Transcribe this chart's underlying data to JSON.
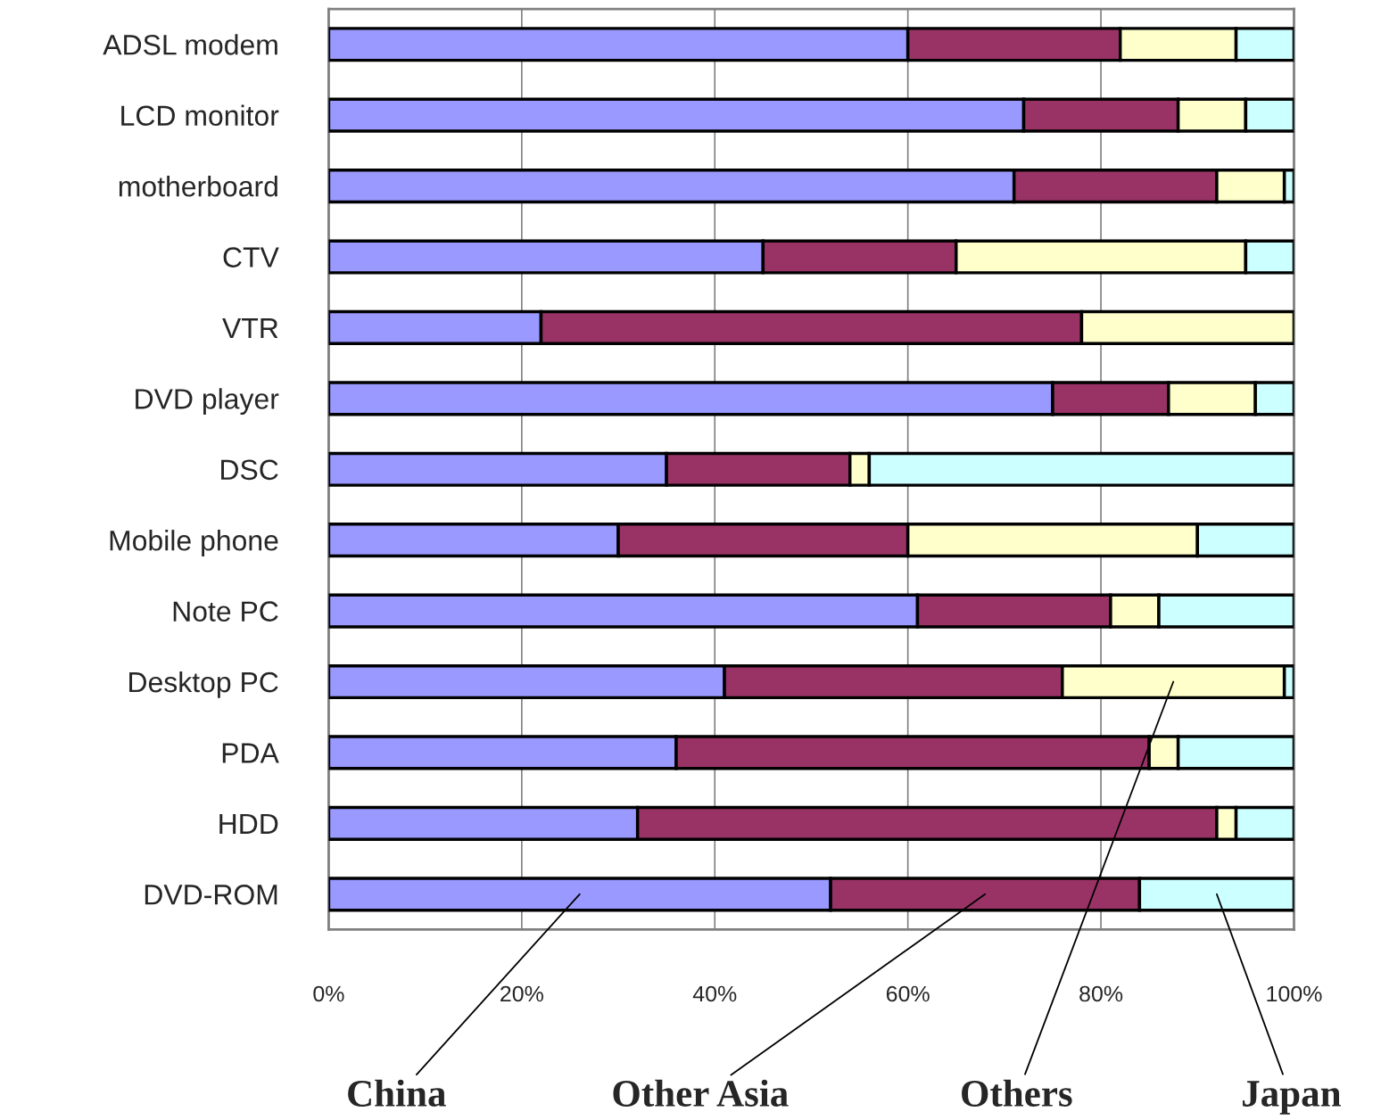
{
  "chart_data": {
    "type": "bar",
    "orientation": "horizontal",
    "stacked": true,
    "categories": [
      "ADSL modem",
      "LCD monitor",
      "motherboard",
      "CTV",
      "VTR",
      "DVD player",
      "DSC",
      "Mobile phone",
      "Note PC",
      "Desktop PC",
      "PDA",
      "HDD",
      "DVD-ROM"
    ],
    "series": [
      {
        "name": "China",
        "color": "#9999ff",
        "values": [
          60,
          72,
          71,
          45,
          22,
          75,
          35,
          30,
          61,
          41,
          36,
          32,
          52
        ]
      },
      {
        "name": "Other Asia",
        "color": "#993366",
        "values": [
          22,
          16,
          21,
          20,
          56,
          12,
          19,
          30,
          20,
          35,
          49,
          60,
          32
        ]
      },
      {
        "name": "Others",
        "color": "#ffffcc",
        "values": [
          12,
          7,
          7,
          30,
          22,
          9,
          2,
          30,
          5,
          23,
          3,
          2,
          0
        ]
      },
      {
        "name": "Japan",
        "color": "#ccffff",
        "values": [
          6,
          5,
          1,
          5,
          0,
          4,
          44,
          10,
          14,
          1,
          12,
          6,
          16
        ]
      }
    ],
    "xlim": [
      0,
      100
    ],
    "xticks": [
      {
        "value": 0,
        "label": "0%"
      },
      {
        "value": 20,
        "label": "20%"
      },
      {
        "value": 40,
        "label": "40%"
      },
      {
        "value": 60,
        "label": "60%"
      },
      {
        "value": 80,
        "label": "80%"
      },
      {
        "value": 100,
        "label": "100%"
      }
    ],
    "grid": "x"
  }
}
